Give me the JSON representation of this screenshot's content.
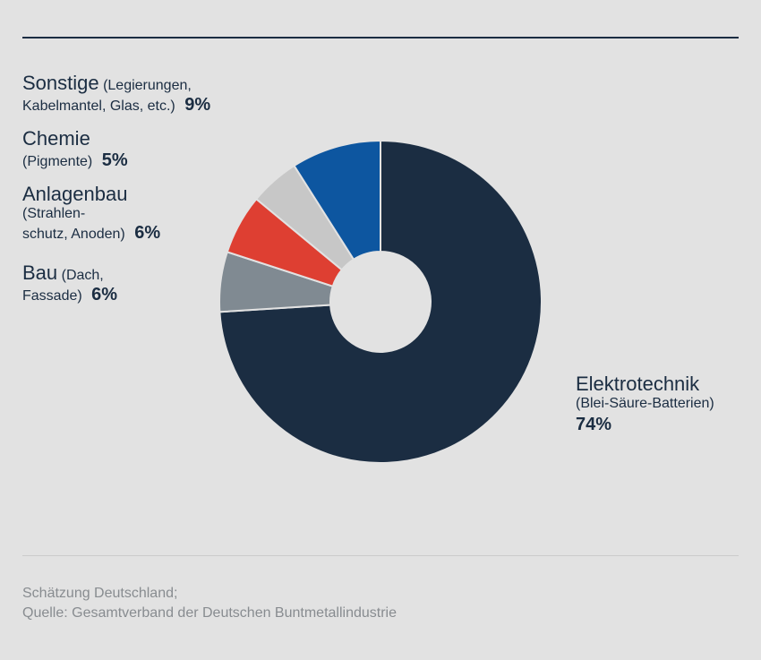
{
  "chart_data": {
    "type": "pie",
    "donut": true,
    "categories": [
      "Elektrotechnik",
      "Bau",
      "Anlagenbau",
      "Chemie",
      "Sonstige"
    ],
    "values": [
      74,
      6,
      6,
      5,
      9
    ],
    "colors": [
      "#1b2d42",
      "#808a92",
      "#de3f32",
      "#c7c7c7",
      "#0d56a0"
    ],
    "labels": [
      {
        "name": "Elektrotechnik",
        "detail": "(Blei-Säure-Batterien)",
        "pct": "74%"
      },
      {
        "name": "Bau",
        "detail": "(Dach,",
        "detail2": "Fassade)",
        "pct": "6%"
      },
      {
        "name": "Anlagenbau",
        "detail": "(Strahlen-",
        "detail2": "schutz, Anoden)",
        "pct": "6%"
      },
      {
        "name": "Chemie",
        "detail": "(Pigmente)",
        "pct": "5%"
      },
      {
        "name": "Sonstige",
        "detail": "(Legierungen,",
        "detail2": "Kabelmantel, Glas, etc.)",
        "pct": "9%"
      }
    ]
  },
  "footnote": {
    "line1": "Schätzung Deutschland;",
    "line2": "Quelle: Gesamtverband der Deutschen Buntmetallindustrie"
  }
}
